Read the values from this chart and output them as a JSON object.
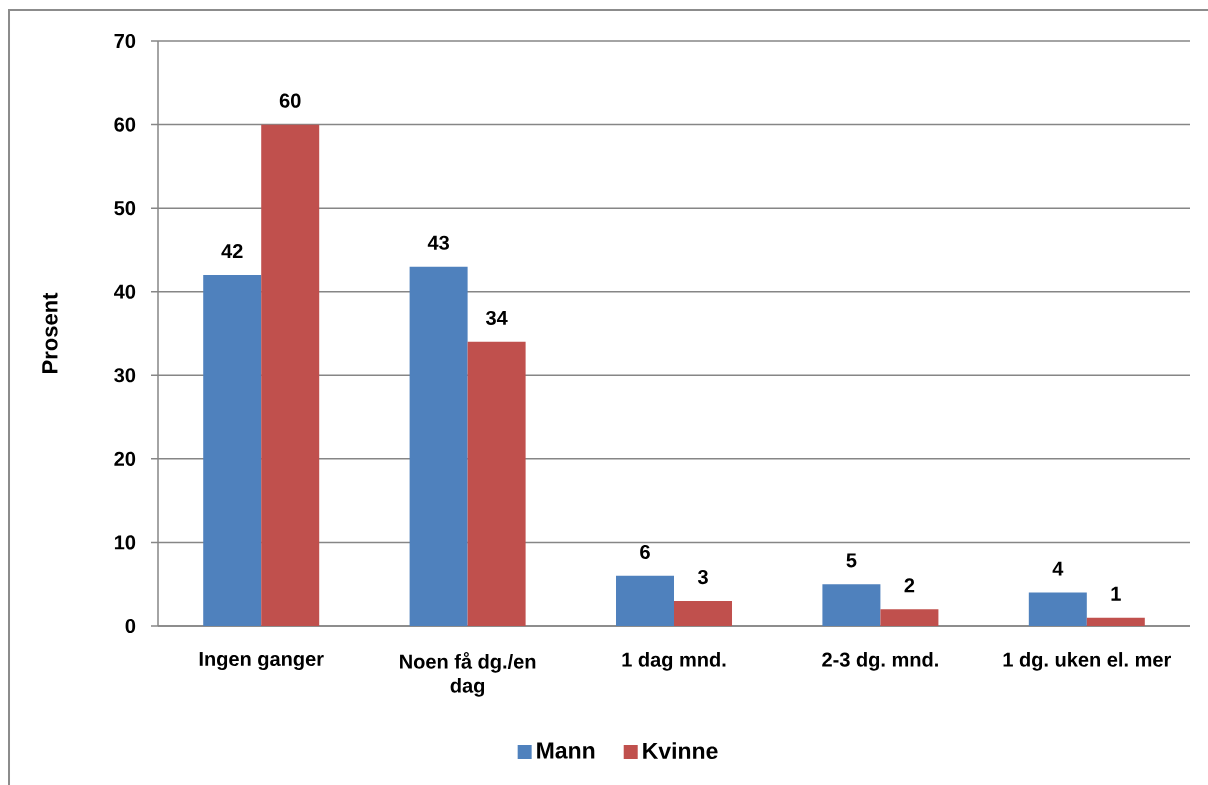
{
  "chart_data": {
    "type": "bar",
    "ylabel": "Prosent",
    "categories": [
      "Ingen ganger",
      "Noen få dg./en dag",
      "1 dag mnd.",
      "2-3 dg. mnd.",
      "1 dg. uken el. mer"
    ],
    "series": [
      {
        "name": "Mann",
        "color": "#4f81bd",
        "values": [
          42,
          43,
          6,
          5,
          4
        ]
      },
      {
        "name": "Kvinne",
        "color": "#c0504d",
        "values": [
          60,
          34,
          3,
          2,
          1
        ]
      }
    ],
    "ylim": [
      0,
      70
    ],
    "yticks": [
      0,
      10,
      20,
      30,
      40,
      50,
      60,
      70
    ],
    "grid": "y",
    "legend": "bottom",
    "data_labels": true
  }
}
